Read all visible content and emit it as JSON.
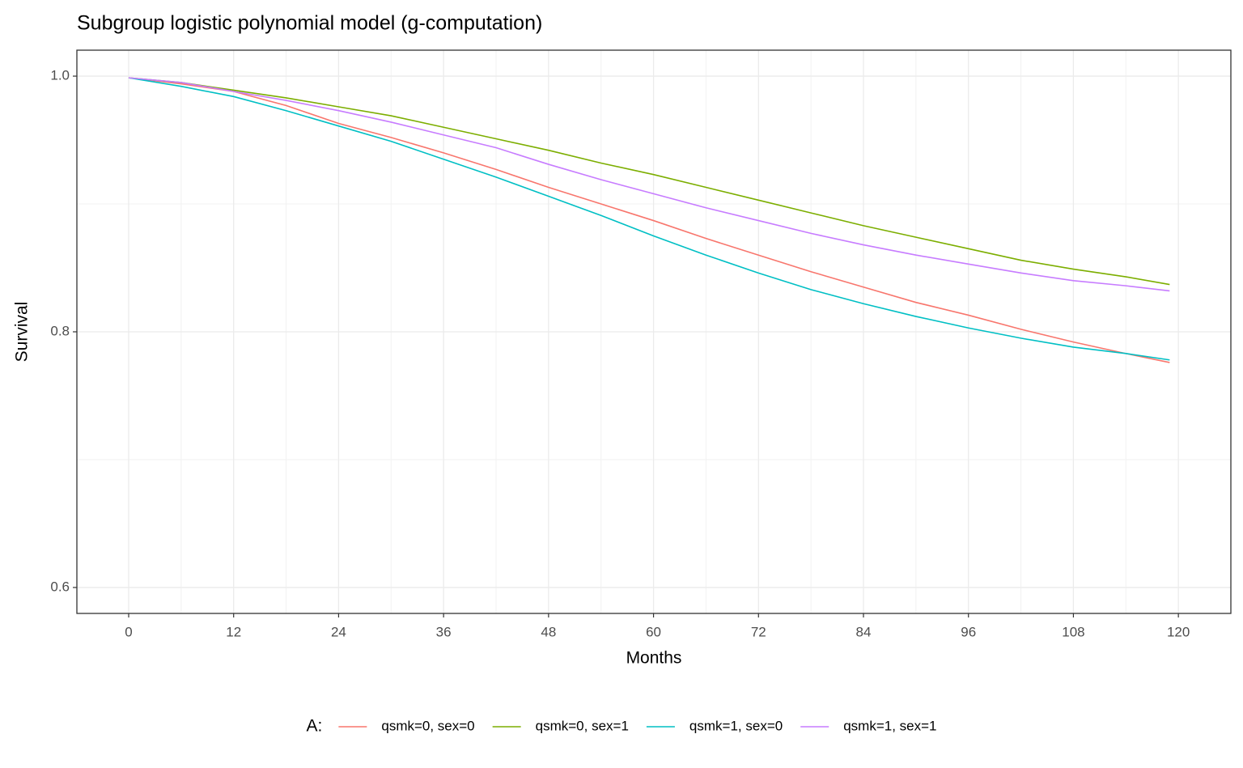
{
  "chart_data": {
    "type": "line",
    "title": "Subgroup logistic polynomial model (g-computation)",
    "x_label": "Months",
    "y_label": "Survival",
    "legend_title": "A:",
    "legend_position": "bottom",
    "grid": true,
    "x": [
      0,
      6,
      12,
      18,
      24,
      30,
      36,
      42,
      48,
      54,
      60,
      66,
      72,
      78,
      84,
      90,
      96,
      102,
      108,
      114,
      119
    ],
    "series": [
      {
        "name": "qsmk=0, sex=0",
        "color": "#f8766d",
        "values": [
          0.9987,
          0.994,
          0.988,
          0.977,
          0.963,
          0.952,
          0.94,
          0.927,
          0.913,
          0.9,
          0.887,
          0.873,
          0.86,
          0.847,
          0.835,
          0.823,
          0.813,
          0.802,
          0.792,
          0.783,
          0.776
        ]
      },
      {
        "name": "qsmk=0, sex=1",
        "color": "#7cae00",
        "values": [
          0.9987,
          0.995,
          0.989,
          0.983,
          0.976,
          0.969,
          0.96,
          0.951,
          0.942,
          0.932,
          0.923,
          0.913,
          0.903,
          0.893,
          0.883,
          0.874,
          0.865,
          0.856,
          0.849,
          0.843,
          0.837
        ]
      },
      {
        "name": "qsmk=1, sex=0",
        "color": "#00bfc4",
        "values": [
          0.9987,
          0.992,
          0.984,
          0.973,
          0.961,
          0.949,
          0.935,
          0.921,
          0.906,
          0.891,
          0.875,
          0.86,
          0.846,
          0.833,
          0.822,
          0.812,
          0.803,
          0.795,
          0.788,
          0.783,
          0.778
        ]
      },
      {
        "name": "qsmk=1, sex=1",
        "color": "#c77cff",
        "values": [
          0.9987,
          0.995,
          0.988,
          0.981,
          0.973,
          0.964,
          0.954,
          0.944,
          0.931,
          0.919,
          0.908,
          0.897,
          0.887,
          0.877,
          0.868,
          0.86,
          0.853,
          0.846,
          0.84,
          0.836,
          0.832
        ]
      }
    ],
    "xlim": [
      -5.92,
      126
    ],
    "xticks": [
      0,
      12,
      24,
      36,
      48,
      60,
      72,
      84,
      96,
      108,
      120
    ],
    "x_minor_ticks": [
      6,
      18,
      30,
      42,
      54,
      66,
      78,
      90,
      102,
      114
    ],
    "ylim": [
      0.5797,
      1.0203
    ],
    "yticks": [
      {
        "value": 1.0,
        "label": "1.0"
      },
      0.8,
      0.6
    ],
    "y_minor_ticks": [
      0.7,
      0.9
    ]
  }
}
